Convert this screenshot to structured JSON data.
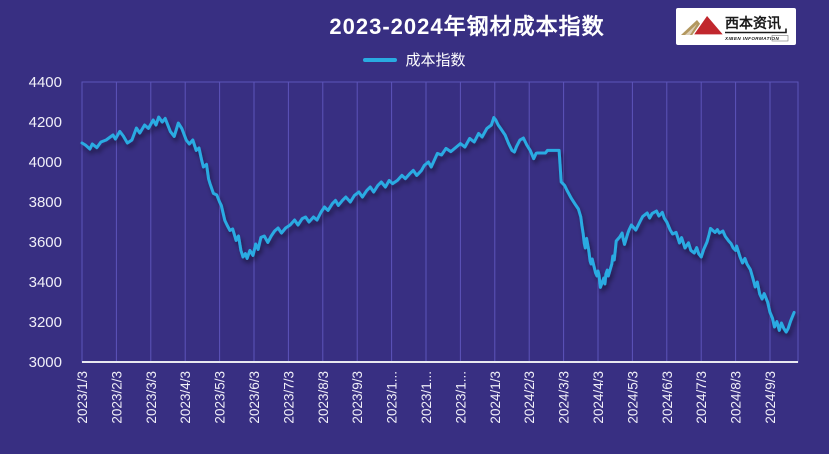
{
  "page": {
    "background": "#382F82"
  },
  "header": {
    "title": "2023-2024年钢材成本指数",
    "legend": {
      "label": "成本指数",
      "swatch_color": "#29ABE2"
    }
  },
  "logo": {
    "name_cn": "西本资讯",
    "name_en": "XIBEN INFORMATION",
    "bg_color": "#FFFFFF",
    "red": "#C1272D",
    "gold": "#B3985F",
    "text_color": "#1A1A1A"
  },
  "chart_data": {
    "type": "line",
    "title": "2023-2024年钢材成本指数",
    "legend_position": "top-center",
    "grid": "vertical-only",
    "background_color": "#382F82",
    "grid_color": "#5D54BA",
    "axis_line_color": "#E8E8F0",
    "tick_label_color": "#F0EFF8",
    "ylim": [
      3000,
      4400
    ],
    "y_ticks": [
      3000,
      3200,
      3400,
      3600,
      3800,
      4000,
      4200,
      4400
    ],
    "x_tick_labels": [
      "2023/1/3",
      "2023/2/3",
      "2023/3/3",
      "2023/4/3",
      "2023/5/3",
      "2023/6/3",
      "2023/7/3",
      "2023/8/3",
      "2023/9/3",
      "2023/1...",
      "2023/1...",
      "2023/1...",
      "2024/1/3",
      "2024/2/3",
      "2024/3/3",
      "2024/4/3",
      "2024/5/3",
      "2024/6/3",
      "2024/7/3",
      "2024/8/3",
      "2024/9/3"
    ],
    "x_note": "point x = months after 2023/1/3 (aligned to tick index, 0 .. 20.7)",
    "series": [
      {
        "name": "成本指数",
        "color": "#29ABE2",
        "points": [
          [
            0,
            4095
          ],
          [
            0.1,
            4085
          ],
          [
            0.23,
            4065
          ],
          [
            0.3,
            4090
          ],
          [
            0.43,
            4072
          ],
          [
            0.55,
            4100
          ],
          [
            0.7,
            4110
          ],
          [
            0.9,
            4135
          ],
          [
            0.97,
            4115
          ],
          [
            1.1,
            4153
          ],
          [
            1.2,
            4130
          ],
          [
            1.32,
            4095
          ],
          [
            1.45,
            4110
          ],
          [
            1.58,
            4170
          ],
          [
            1.68,
            4145
          ],
          [
            1.82,
            4185
          ],
          [
            1.93,
            4168
          ],
          [
            2.07,
            4210
          ],
          [
            2.15,
            4185
          ],
          [
            2.23,
            4225
          ],
          [
            2.33,
            4200
          ],
          [
            2.42,
            4218
          ],
          [
            2.57,
            4152
          ],
          [
            2.68,
            4128
          ],
          [
            2.8,
            4195
          ],
          [
            2.9,
            4168
          ],
          [
            3.03,
            4110
          ],
          [
            3.12,
            4090
          ],
          [
            3.22,
            4110
          ],
          [
            3.32,
            4058
          ],
          [
            3.4,
            4070
          ],
          [
            3.48,
            4008
          ],
          [
            3.53,
            3975
          ],
          [
            3.62,
            3988
          ],
          [
            3.68,
            3915
          ],
          [
            3.72,
            3892
          ],
          [
            3.82,
            3843
          ],
          [
            3.92,
            3835
          ],
          [
            4,
            3800
          ],
          [
            4.05,
            3783
          ],
          [
            4.15,
            3708
          ],
          [
            4.22,
            3683
          ],
          [
            4.3,
            3658
          ],
          [
            4.38,
            3665
          ],
          [
            4.48,
            3608
          ],
          [
            4.55,
            3630
          ],
          [
            4.62,
            3558
          ],
          [
            4.68,
            3525
          ],
          [
            4.75,
            3542
          ],
          [
            4.8,
            3518
          ],
          [
            4.88,
            3558
          ],
          [
            4.97,
            3533
          ],
          [
            5.05,
            3590
          ],
          [
            5.12,
            3563
          ],
          [
            5.2,
            3623
          ],
          [
            5.3,
            3630
          ],
          [
            5.4,
            3598
          ],
          [
            5.5,
            3630
          ],
          [
            5.6,
            3655
          ],
          [
            5.7,
            3670
          ],
          [
            5.8,
            3645
          ],
          [
            5.92,
            3670
          ],
          [
            6.05,
            3685
          ],
          [
            6.18,
            3710
          ],
          [
            6.28,
            3685
          ],
          [
            6.4,
            3717
          ],
          [
            6.5,
            3725
          ],
          [
            6.6,
            3700
          ],
          [
            6.73,
            3725
          ],
          [
            6.83,
            3710
          ],
          [
            6.95,
            3750
          ],
          [
            7.05,
            3775
          ],
          [
            7.15,
            3758
          ],
          [
            7.28,
            3792
          ],
          [
            7.37,
            3808
          ],
          [
            7.45,
            3783
          ],
          [
            7.57,
            3808
          ],
          [
            7.67,
            3825
          ],
          [
            7.8,
            3800
          ],
          [
            7.92,
            3833
          ],
          [
            8.05,
            3850
          ],
          [
            8.15,
            3825
          ],
          [
            8.28,
            3858
          ],
          [
            8.38,
            3875
          ],
          [
            8.48,
            3850
          ],
          [
            8.6,
            3883
          ],
          [
            8.7,
            3900
          ],
          [
            8.82,
            3875
          ],
          [
            8.93,
            3908
          ],
          [
            9.03,
            3892
          ],
          [
            9.17,
            3908
          ],
          [
            9.3,
            3933
          ],
          [
            9.4,
            3917
          ],
          [
            9.53,
            3942
          ],
          [
            9.63,
            3958
          ],
          [
            9.73,
            3933
          ],
          [
            9.87,
            3958
          ],
          [
            9.95,
            3983
          ],
          [
            10.07,
            4000
          ],
          [
            10.15,
            3975
          ],
          [
            10.33,
            4043
          ],
          [
            10.45,
            4035
          ],
          [
            10.58,
            4068
          ],
          [
            10.72,
            4052
          ],
          [
            11,
            4092
          ],
          [
            11.13,
            4075
          ],
          [
            11.27,
            4118
          ],
          [
            11.4,
            4100
          ],
          [
            11.53,
            4143
          ],
          [
            11.63,
            4125
          ],
          [
            11.77,
            4168
          ],
          [
            11.9,
            4185
          ],
          [
            11.97,
            4222
          ],
          [
            12.03,
            4210
          ],
          [
            12.1,
            4185
          ],
          [
            12.17,
            4168
          ],
          [
            12.3,
            4135
          ],
          [
            12.4,
            4092
          ],
          [
            12.5,
            4058
          ],
          [
            12.57,
            4050
          ],
          [
            12.63,
            4077
          ],
          [
            12.73,
            4110
          ],
          [
            12.83,
            4120
          ],
          [
            12.93,
            4085
          ],
          [
            13.03,
            4058
          ],
          [
            13.13,
            4017
          ],
          [
            13.2,
            4043
          ],
          [
            13.23,
            4045
          ],
          [
            13.47,
            4045
          ],
          [
            13.53,
            4058
          ],
          [
            13.87,
            4058
          ],
          [
            13.93,
            3900
          ],
          [
            14.03,
            3883
          ],
          [
            14.1,
            3858
          ],
          [
            14.23,
            3817
          ],
          [
            14.33,
            3790
          ],
          [
            14.43,
            3765
          ],
          [
            14.5,
            3725
          ],
          [
            14.53,
            3685
          ],
          [
            14.57,
            3640
          ],
          [
            14.6,
            3595
          ],
          [
            14.63,
            3570
          ],
          [
            14.67,
            3618
          ],
          [
            14.73,
            3560
          ],
          [
            14.77,
            3505
          ],
          [
            14.8,
            3490
          ],
          [
            14.83,
            3515
          ],
          [
            14.93,
            3445
          ],
          [
            14.97,
            3430
          ],
          [
            15,
            3455
          ],
          [
            15.03,
            3435
          ],
          [
            15.07,
            3373
          ],
          [
            15.17,
            3420
          ],
          [
            15.2,
            3390
          ],
          [
            15.23,
            3440
          ],
          [
            15.27,
            3460
          ],
          [
            15.3,
            3430
          ],
          [
            15.4,
            3490
          ],
          [
            15.43,
            3530
          ],
          [
            15.47,
            3510
          ],
          [
            15.5,
            3555
          ],
          [
            15.53,
            3605
          ],
          [
            15.63,
            3625
          ],
          [
            15.7,
            3645
          ],
          [
            15.73,
            3618
          ],
          [
            15.77,
            3588
          ],
          [
            15.87,
            3645
          ],
          [
            15.9,
            3660
          ],
          [
            15.97,
            3685
          ],
          [
            16.1,
            3660
          ],
          [
            16.23,
            3705
          ],
          [
            16.3,
            3728
          ],
          [
            16.43,
            3745
          ],
          [
            16.5,
            3720
          ],
          [
            16.57,
            3742
          ],
          [
            16.7,
            3755
          ],
          [
            16.77,
            3730
          ],
          [
            16.87,
            3748
          ],
          [
            16.93,
            3718
          ],
          [
            17,
            3700
          ],
          [
            17.1,
            3660
          ],
          [
            17.17,
            3640
          ],
          [
            17.27,
            3648
          ],
          [
            17.37,
            3595
          ],
          [
            17.43,
            3622
          ],
          [
            17.53,
            3570
          ],
          [
            17.63,
            3596
          ],
          [
            17.7,
            3558
          ],
          [
            17.8,
            3545
          ],
          [
            17.87,
            3572
          ],
          [
            17.93,
            3540
          ],
          [
            18,
            3525
          ],
          [
            18.07,
            3562
          ],
          [
            18.17,
            3600
          ],
          [
            18.23,
            3638
          ],
          [
            18.27,
            3668
          ],
          [
            18.4,
            3648
          ],
          [
            18.47,
            3662
          ],
          [
            18.53,
            3645
          ],
          [
            18.63,
            3655
          ],
          [
            18.7,
            3628
          ],
          [
            18.8,
            3605
          ],
          [
            18.87,
            3592
          ],
          [
            18.93,
            3570
          ],
          [
            19,
            3558
          ],
          [
            19.03,
            3580
          ],
          [
            19.13,
            3525
          ],
          [
            19.2,
            3495
          ],
          [
            19.27,
            3518
          ],
          [
            19.33,
            3490
          ],
          [
            19.43,
            3462
          ],
          [
            19.5,
            3420
          ],
          [
            19.57,
            3375
          ],
          [
            19.63,
            3400
          ],
          [
            19.7,
            3340
          ],
          [
            19.77,
            3315
          ],
          [
            19.83,
            3342
          ],
          [
            19.93,
            3300
          ],
          [
            20,
            3248
          ],
          [
            20.07,
            3220
          ],
          [
            20.13,
            3175
          ],
          [
            20.2,
            3202
          ],
          [
            20.27,
            3158
          ],
          [
            20.33,
            3195
          ],
          [
            20.4,
            3168
          ],
          [
            20.47,
            3150
          ],
          [
            20.53,
            3168
          ],
          [
            20.6,
            3205
          ],
          [
            20.7,
            3248
          ]
        ]
      }
    ]
  }
}
